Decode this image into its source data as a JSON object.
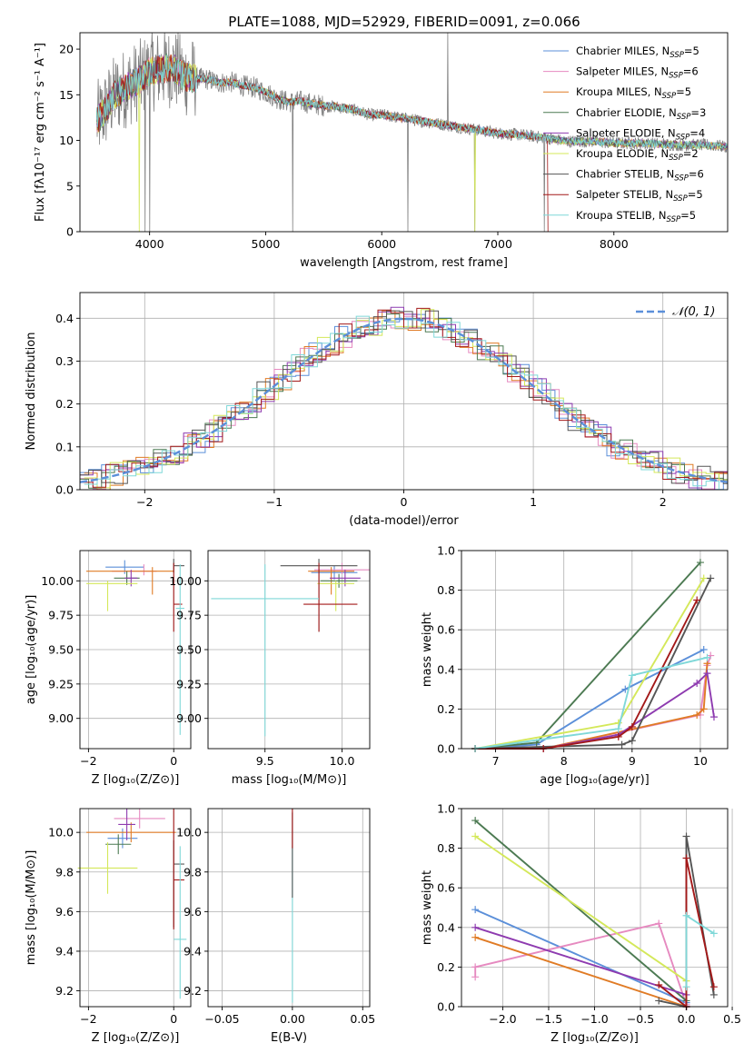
{
  "figure_title": "PLATE=1088, MJD=52929, FIBERID=0091, z=0.066",
  "colors": {
    "Chabrier MILES": "#5b8fd9",
    "Salpeter MILES": "#e68ac0",
    "Kroupa MILES": "#e07b25",
    "Chabrier ELODIE": "#4c7a52",
    "Salpeter ELODIE": "#8e3bb0",
    "Kroupa ELODIE": "#d4e85a",
    "Chabrier STELIB": "#555555",
    "Salpeter STELIB": "#a31919",
    "Kroupa STELIB": "#7fd8d8",
    "data": "#808080",
    "gaussian": "#5b8fd9"
  },
  "chart_data": [
    {
      "id": "spectrum",
      "type": "line",
      "xlabel": "wavelength [Angstrom, rest frame]",
      "ylabel": "Flux [fλ10⁻¹⁷ erg cm⁻² s⁻¹ A⁻¹]",
      "xlim": [
        3400,
        8980
      ],
      "ylim": [
        0,
        21.8
      ],
      "xticks": [
        "4000",
        "5000",
        "6000",
        "7000",
        "8000"
      ],
      "yticks": [
        "0",
        "5",
        "10",
        "15",
        "20"
      ],
      "grid": false,
      "legend_position": "top-right",
      "legend": [
        {
          "model": "Chabrier MILES",
          "label": "Chabrier MILES, N",
          "sub": "SSP",
          "tail": "=5"
        },
        {
          "model": "Salpeter MILES",
          "label": "Salpeter MILES, N",
          "sub": "SSP",
          "tail": "=6"
        },
        {
          "model": "Kroupa MILES",
          "label": "Kroupa MILES, N",
          "sub": "SSP",
          "tail": "=5"
        },
        {
          "model": "Chabrier ELODIE",
          "label": "Chabrier ELODIE, N",
          "sub": "SSP",
          "tail": "=3"
        },
        {
          "model": "Salpeter ELODIE",
          "label": "Salpeter ELODIE, N",
          "sub": "SSP",
          "tail": "=4"
        },
        {
          "model": "Kroupa ELODIE",
          "label": "Kroupa ELODIE, N",
          "sub": "SSP",
          "tail": "=2"
        },
        {
          "model": "Chabrier STELIB",
          "label": "Chabrier STELIB, N",
          "sub": "SSP",
          "tail": "=6"
        },
        {
          "model": "Salpeter STELIB",
          "label": "Salpeter STELIB, N",
          "sub": "SSP",
          "tail": "=5"
        },
        {
          "model": "Kroupa STELIB",
          "label": "Kroupa STELIB, N",
          "sub": "SSP",
          "tail": "=5"
        }
      ],
      "continuum": [
        [
          3540,
          12.0
        ],
        [
          3600,
          13.0
        ],
        [
          3700,
          15.0
        ],
        [
          3800,
          15.8
        ],
        [
          3900,
          16.5
        ],
        [
          4000,
          17.5
        ],
        [
          4100,
          17.8
        ],
        [
          4200,
          18.0
        ],
        [
          4300,
          17.0
        ],
        [
          4400,
          16.8
        ],
        [
          4500,
          16.7
        ],
        [
          4600,
          16.3
        ],
        [
          4700,
          16.4
        ],
        [
          4800,
          16.0
        ],
        [
          4900,
          15.8
        ],
        [
          5000,
          15.3
        ],
        [
          5100,
          14.6
        ],
        [
          5200,
          14.2
        ],
        [
          5300,
          14.3
        ],
        [
          5400,
          14.0
        ],
        [
          5500,
          13.8
        ],
        [
          5600,
          13.7
        ],
        [
          5700,
          13.5
        ],
        [
          5800,
          13.2
        ],
        [
          5900,
          12.8
        ],
        [
          6000,
          12.8
        ],
        [
          6200,
          12.4
        ],
        [
          6400,
          12.0
        ],
        [
          6600,
          11.6
        ],
        [
          6800,
          11.2
        ],
        [
          7000,
          10.8
        ],
        [
          7200,
          10.6
        ],
        [
          7400,
          10.3
        ],
        [
          7600,
          9.9
        ],
        [
          7800,
          9.9
        ],
        [
          8000,
          9.7
        ],
        [
          8200,
          9.7
        ],
        [
          8400,
          9.6
        ],
        [
          8600,
          9.5
        ],
        [
          8800,
          9.5
        ],
        [
          8980,
          9.3
        ]
      ],
      "data_spikes": [
        [
          3960,
          0
        ],
        [
          4000,
          0
        ],
        [
          5232,
          0
        ],
        [
          6570,
          21.8
        ],
        [
          6800,
          0
        ],
        [
          7400,
          0
        ],
        [
          6225,
          0
        ]
      ]
    },
    {
      "id": "residuals",
      "type": "histogram",
      "xlabel": "(data-model)/error",
      "ylabel": "Normed distribution",
      "xlim": [
        -2.5,
        2.5
      ],
      "ylim": [
        0,
        0.46
      ],
      "xticks": [
        "−2",
        "−1",
        "0",
        "1",
        "2"
      ],
      "yticks": [
        "0.0",
        "0.1",
        "0.2",
        "0.3",
        "0.4"
      ],
      "grid": true,
      "legend": "𝒩(0, 1)",
      "legend_position": "top-right",
      "bin_width": 0.1
    },
    {
      "id": "age-vs-Z",
      "type": "errorbar",
      "xlabel": "Z [log₁₀(Z/Z⊙)]",
      "ylabel": "age  [log₁₀(age/yr)]",
      "xlim": [
        -2.2,
        0.4
      ],
      "ylim": [
        8.78,
        10.22
      ],
      "xticks": [
        "−2",
        "0"
      ],
      "yticks": [
        "9.00",
        "9.25",
        "9.50",
        "9.75",
        "10.00"
      ],
      "grid": true,
      "points": [
        {
          "model": "Chabrier MILES",
          "x": -1.15,
          "y": 10.1,
          "xerr": [
            0.45,
            0.45
          ],
          "yerr": [
            0.05,
            0.05
          ]
        },
        {
          "model": "Salpeter MILES",
          "x": -0.7,
          "y": 10.07,
          "xerr": [
            0.75,
            0.3
          ],
          "yerr": [
            0.03,
            0.05
          ]
        },
        {
          "model": "Kroupa MILES",
          "x": -0.5,
          "y": 10.07,
          "xerr": [
            1.55,
            0.5
          ],
          "yerr": [
            0.17,
            0.03
          ]
        },
        {
          "model": "Chabrier ELODIE",
          "x": -1.1,
          "y": 10.02,
          "xerr": [
            0.3,
            0.3
          ],
          "yerr": [
            0.05,
            0.05
          ]
        },
        {
          "model": "Salpeter ELODIE",
          "x": -1.0,
          "y": 10.02,
          "xerr": [
            0.15,
            0.15
          ],
          "yerr": [
            0.06,
            0.06
          ]
        },
        {
          "model": "Kroupa ELODIE",
          "x": -1.55,
          "y": 9.98,
          "xerr": [
            0.5,
            0.7
          ],
          "yerr": [
            0.2,
            0.02
          ]
        },
        {
          "model": "Chabrier STELIB",
          "x": 0.0,
          "y": 10.11,
          "xerr": [
            0.0,
            0.25
          ],
          "yerr": [
            0.05,
            0.05
          ]
        },
        {
          "model": "Salpeter STELIB",
          "x": 0.0,
          "y": 9.83,
          "xerr": [
            0.0,
            0.2
          ],
          "yerr": [
            0.2,
            0.3
          ]
        },
        {
          "model": "Kroupa STELIB",
          "x": 0.15,
          "y": 9.8,
          "xerr": [
            0.1,
            0.1
          ],
          "yerr": [
            0.92,
            0.32
          ]
        }
      ]
    },
    {
      "id": "age-vs-mass",
      "type": "errorbar",
      "xlabel": "mass [log₁₀(M/M⊙)]",
      "xlim": [
        9.13,
        10.18
      ],
      "ylim": [
        8.78,
        10.22
      ],
      "xticks": [
        "9.5",
        "10.0"
      ],
      "yticks": [
        "9.00",
        "9.25",
        "9.50",
        "9.75",
        "10.00"
      ],
      "grid": true,
      "points": [
        {
          "model": "Chabrier MILES",
          "x": 9.95,
          "y": 10.06,
          "xerr": [
            0.15,
            0.15
          ],
          "yerr": [
            0.05,
            0.05
          ]
        },
        {
          "model": "Salpeter MILES",
          "x": 10.0,
          "y": 10.08,
          "xerr": [
            0.18,
            0.18
          ],
          "yerr": [
            0.03,
            0.05
          ]
        },
        {
          "model": "Kroupa MILES",
          "x": 9.93,
          "y": 10.07,
          "xerr": [
            0.15,
            0.15
          ],
          "yerr": [
            0.17,
            0.03
          ]
        },
        {
          "model": "Chabrier ELODIE",
          "x": 9.98,
          "y": 10.0,
          "xerr": [
            0.12,
            0.12
          ],
          "yerr": [
            0.05,
            0.05
          ]
        },
        {
          "model": "Salpeter ELODIE",
          "x": 10.02,
          "y": 10.02,
          "xerr": [
            0.1,
            0.1
          ],
          "yerr": [
            0.06,
            0.06
          ]
        },
        {
          "model": "Kroupa ELODIE",
          "x": 9.96,
          "y": 9.98,
          "xerr": [
            0.12,
            0.12
          ],
          "yerr": [
            0.2,
            0.02
          ]
        },
        {
          "model": "Chabrier STELIB",
          "x": 9.85,
          "y": 10.11,
          "xerr": [
            0.25,
            0.25
          ],
          "yerr": [
            0.48,
            0.05
          ]
        },
        {
          "model": "Salpeter STELIB",
          "x": 9.85,
          "y": 9.83,
          "xerr": [
            0.1,
            0.25
          ],
          "yerr": [
            0.2,
            0.3
          ]
        },
        {
          "model": "Kroupa STELIB",
          "x": 9.5,
          "y": 9.87,
          "xerr": [
            0.35,
            0.35
          ],
          "yerr": [
            1.0,
            0.25
          ]
        }
      ]
    },
    {
      "id": "mass-weight-vs-age",
      "type": "line",
      "xlabel": "age  [log₁₀(age/yr)]",
      "ylabel": "mass weight",
      "xlim": [
        6.5,
        10.4
      ],
      "ylim": [
        0,
        1.0
      ],
      "xticks": [
        "7",
        "8",
        "9",
        "10"
      ],
      "yticks": [
        "0.0",
        "0.2",
        "0.4",
        "0.6",
        "0.8",
        "1.0"
      ],
      "grid": true,
      "series": [
        {
          "model": "Chabrier MILES",
          "x": [
            6.7,
            7.6,
            8.9,
            10.05
          ],
          "y": [
            0.0,
            0.02,
            0.3,
            0.5
          ]
        },
        {
          "model": "Salpeter MILES",
          "x": [
            6.7,
            7.7,
            10.0,
            10.1,
            10.15
          ],
          "y": [
            0.0,
            0.0,
            0.17,
            0.42,
            0.47
          ]
        },
        {
          "model": "Kroupa MILES",
          "x": [
            6.7,
            7.7,
            9.95,
            10.05,
            10.1
          ],
          "y": [
            0.0,
            0.0,
            0.17,
            0.2,
            0.43
          ]
        },
        {
          "model": "Chabrier ELODIE",
          "x": [
            6.7,
            7.6,
            10.0
          ],
          "y": [
            0.0,
            0.03,
            0.94
          ]
        },
        {
          "model": "Salpeter ELODIE",
          "x": [
            6.7,
            7.7,
            8.8,
            9.95,
            10.1,
            10.2
          ],
          "y": [
            0.0,
            0.0,
            0.07,
            0.33,
            0.38,
            0.16
          ]
        },
        {
          "model": "Kroupa ELODIE",
          "x": [
            6.7,
            8.8,
            10.05
          ],
          "y": [
            0.0,
            0.13,
            0.86
          ]
        },
        {
          "model": "Chabrier STELIB",
          "x": [
            6.7,
            8.85,
            9.0,
            10.15
          ],
          "y": [
            0.0,
            0.02,
            0.04,
            0.86
          ]
        },
        {
          "model": "Salpeter STELIB",
          "x": [
            6.7,
            7.7,
            8.8,
            9.0,
            9.95
          ],
          "y": [
            0.0,
            0.0,
            0.06,
            0.11,
            0.75
          ]
        },
        {
          "model": "Kroupa STELIB",
          "x": [
            6.7,
            8.8,
            9.0,
            10.1
          ],
          "y": [
            0.0,
            0.1,
            0.37,
            0.46
          ]
        }
      ]
    },
    {
      "id": "mass-vs-Z",
      "type": "errorbar",
      "xlabel": "Z [log₁₀(Z/Z⊙)]",
      "ylabel": "mass [log₁₀(M/M⊙)]",
      "xlim": [
        -2.2,
        0.4
      ],
      "ylim": [
        9.12,
        10.12
      ],
      "xticks": [
        "−2",
        "0"
      ],
      "yticks": [
        "9.2",
        "9.4",
        "9.6",
        "9.8",
        "10.0"
      ],
      "grid": true,
      "points": [
        {
          "model": "Chabrier MILES",
          "x": -1.2,
          "y": 9.97,
          "xerr": [
            0.35,
            0.35
          ],
          "yerr": [
            0.05,
            0.05
          ]
        },
        {
          "model": "Salpeter MILES",
          "x": -0.8,
          "y": 10.07,
          "xerr": [
            0.6,
            0.6
          ],
          "yerr": [
            0.05,
            0.05
          ]
        },
        {
          "model": "Kroupa MILES",
          "x": -1.0,
          "y": 10.0,
          "xerr": [
            1.05,
            1.05
          ],
          "yerr": [
            0.05,
            0.05
          ]
        },
        {
          "model": "Chabrier ELODIE",
          "x": -1.3,
          "y": 9.94,
          "xerr": [
            0.3,
            0.3
          ],
          "yerr": [
            0.05,
            0.05
          ]
        },
        {
          "model": "Salpeter ELODIE",
          "x": -1.1,
          "y": 10.04,
          "xerr": [
            0.2,
            0.2
          ],
          "yerr": [
            0.08,
            0.08
          ]
        },
        {
          "model": "Kroupa ELODIE",
          "x": -1.55,
          "y": 9.82,
          "xerr": [
            0.7,
            0.7
          ],
          "yerr": [
            0.13,
            0.13
          ]
        },
        {
          "model": "Chabrier STELIB",
          "x": 0.0,
          "y": 9.84,
          "xerr": [
            0.0,
            0.25
          ],
          "yerr": [
            0.32,
            0.12
          ]
        },
        {
          "model": "Salpeter STELIB",
          "x": 0.0,
          "y": 9.76,
          "xerr": [
            0.0,
            0.25
          ],
          "yerr": [
            0.25,
            0.36
          ]
        },
        {
          "model": "Kroupa STELIB",
          "x": 0.15,
          "y": 9.46,
          "xerr": [
            0.15,
            0.15
          ],
          "yerr": [
            0.3,
            0.47
          ]
        }
      ]
    },
    {
      "id": "mass-vs-EBV",
      "type": "errorbar",
      "xlabel": "E(B-V)",
      "xlim": [
        -0.06,
        0.055
      ],
      "ylim": [
        9.12,
        10.12
      ],
      "xticks": [
        "−0.05",
        "0.00",
        "0.05"
      ],
      "yticks": [
        "9.2",
        "9.4",
        "9.6",
        "9.8",
        "10.0"
      ],
      "grid": true,
      "points": [
        {
          "model": "Kroupa STELIB",
          "x": 0.0,
          "y": 9.46,
          "xerr": [
            0,
            0
          ],
          "yerr": [
            0.32,
            0.47
          ]
        },
        {
          "model": "Chabrier STELIB",
          "x": 0.0,
          "y": 9.92,
          "xerr": [
            0,
            0
          ],
          "yerr": [
            0.25,
            0.18
          ]
        },
        {
          "model": "Salpeter STELIB",
          "x": 0.0,
          "y": 10.02,
          "xerr": [
            0,
            0
          ],
          "yerr": [
            0.1,
            0.1
          ]
        }
      ]
    },
    {
      "id": "mass-weight-vs-Z",
      "type": "line",
      "xlabel": "Z [log₁₀(Z/Z⊙)]",
      "ylabel": "mass weight",
      "xlim": [
        -2.45,
        0.45
      ],
      "ylim": [
        0,
        1.0
      ],
      "xticks": [
        "−2.0",
        "−1.5",
        "−1.0",
        "−0.5",
        "0.0",
        "0.5"
      ],
      "yticks": [
        "0.0",
        "0.2",
        "0.4",
        "0.6",
        "0.8",
        "1.0"
      ],
      "grid": true,
      "series": [
        {
          "model": "Chabrier MILES",
          "x": [
            -2.3,
            0.0,
            0.0
          ],
          "y": [
            0.49,
            0.02,
            0.0
          ]
        },
        {
          "model": "Salpeter MILES",
          "x": [
            -2.3,
            -2.3,
            -0.3,
            0.0
          ],
          "y": [
            0.15,
            0.2,
            0.42,
            0.01
          ]
        },
        {
          "model": "Kroupa MILES",
          "x": [
            -2.3,
            0.0
          ],
          "y": [
            0.35,
            0.0
          ]
        },
        {
          "model": "Chabrier ELODIE",
          "x": [
            -2.3,
            0.0
          ],
          "y": [
            0.94,
            0.03
          ]
        },
        {
          "model": "Salpeter ELODIE",
          "x": [
            -2.3,
            0.0,
            0.0
          ],
          "y": [
            0.4,
            0.06,
            0.0
          ]
        },
        {
          "model": "Kroupa ELODIE",
          "x": [
            -2.3,
            0.0
          ],
          "y": [
            0.86,
            0.13
          ]
        },
        {
          "model": "Chabrier STELIB",
          "x": [
            -0.3,
            0.0,
            0.0,
            0.3
          ],
          "y": [
            0.03,
            0.0,
            0.86,
            0.06
          ]
        },
        {
          "model": "Salpeter STELIB",
          "x": [
            -0.3,
            0.0,
            0.0,
            0.3
          ],
          "y": [
            0.11,
            0.0,
            0.75,
            0.1
          ]
        },
        {
          "model": "Kroupa STELIB",
          "x": [
            0.0,
            0.0,
            0.3
          ],
          "y": [
            0.1,
            0.46,
            0.37
          ]
        }
      ]
    }
  ]
}
